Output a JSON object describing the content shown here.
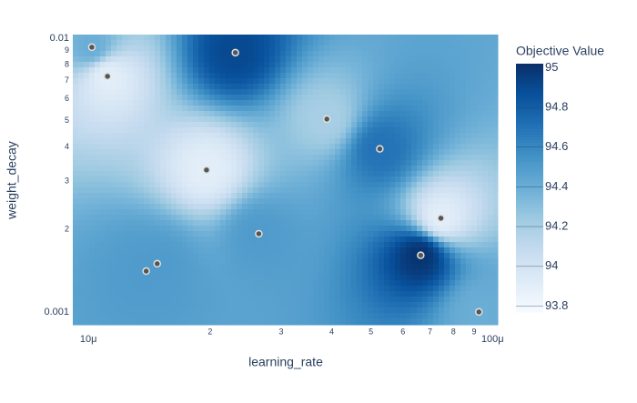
{
  "chart_data": {
    "type": "contour",
    "x_label": "learning_rate",
    "y_label": "weight_decay",
    "colorbar_title": "Objective Value",
    "x_log": true,
    "y_log": true,
    "xlim": [
      9.15e-06,
      0.000103
    ],
    "ylim": [
      0.000898,
      0.0103
    ],
    "xticks": [
      {
        "value": 1e-05,
        "label": "10μ"
      },
      {
        "value": 2e-05,
        "label": "2"
      },
      {
        "value": 3e-05,
        "label": "3"
      },
      {
        "value": 4e-05,
        "label": "4"
      },
      {
        "value": 5e-05,
        "label": "5"
      },
      {
        "value": 6e-05,
        "label": "6"
      },
      {
        "value": 7e-05,
        "label": "7"
      },
      {
        "value": 8e-05,
        "label": "8"
      },
      {
        "value": 9e-05,
        "label": "9"
      },
      {
        "value": 0.0001,
        "label": "100μ"
      }
    ],
    "yticks": [
      0.001,
      {
        "value": 0.002,
        "label": "2"
      },
      {
        "value": 0.003,
        "label": "3"
      },
      {
        "value": 0.004,
        "label": "4"
      },
      {
        "value": 0.005,
        "label": "5"
      },
      {
        "value": 0.006,
        "label": "6"
      },
      {
        "value": 0.007,
        "label": "7"
      },
      {
        "value": 0.008,
        "label": "8"
      },
      {
        "value": 0.009,
        "label": "9"
      },
      0.01
    ],
    "zlim": [
      93.77,
      95.02
    ],
    "zticks": [
      93.8,
      94,
      94.2,
      94.4,
      94.6,
      94.8,
      95
    ],
    "colorscale": [
      "#f7fbff",
      "#deebf7",
      "#c6dbef",
      "#9ecae1",
      "#6baed6",
      "#4292c6",
      "#2171b5",
      "#08519c",
      "#08306b"
    ],
    "marker_color": "#555555",
    "x": [
      1.02e-05,
      1.115e-05,
      2.31e-05,
      1.96e-05,
      3.89e-05,
      5.26e-05,
      7.45e-05,
      2.64e-05,
      6.64e-05,
      1.48e-05,
      1.39e-05,
      9.25e-05
    ],
    "y": [
      0.00926,
      0.00725,
      0.00885,
      0.0033,
      0.00506,
      0.00394,
      0.0022,
      0.00193,
      0.00161,
      0.0015,
      0.00141,
      0.001
    ],
    "z": [
      94.4,
      93.9,
      94.9,
      93.9,
      94.2,
      94.7,
      93.9,
      94.5,
      95.0,
      94.5,
      94.5,
      94.4
    ]
  }
}
